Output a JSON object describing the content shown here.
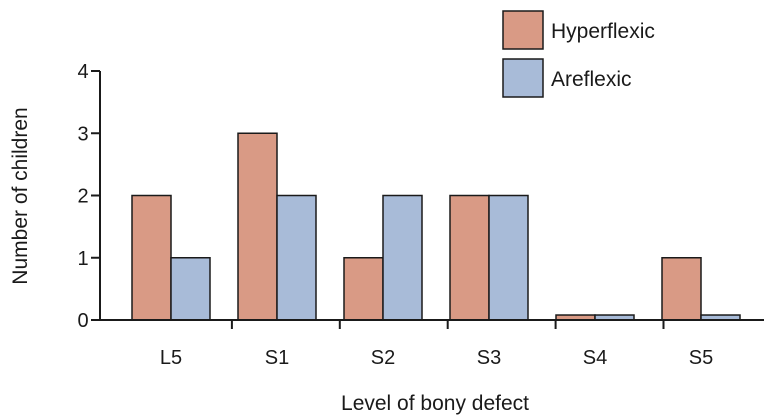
{
  "chart_data": {
    "type": "bar",
    "categories": [
      "L5",
      "S1",
      "S2",
      "S3",
      "S4",
      "S5"
    ],
    "series": [
      {
        "name": "Hyperflexic",
        "values": [
          2,
          3,
          1,
          2,
          0,
          1
        ],
        "color": "#d99a85"
      },
      {
        "name": "Areflexic",
        "values": [
          1,
          2,
          2,
          2,
          0,
          0
        ],
        "color": "#a8bbd8"
      }
    ],
    "xlabel": "Level of bony defect",
    "ylabel": "Number of children",
    "ylim": [
      0,
      4
    ],
    "yticks": [
      "0",
      "1",
      "2",
      "3",
      "4"
    ],
    "grid": false,
    "legend_position": "top-right"
  }
}
